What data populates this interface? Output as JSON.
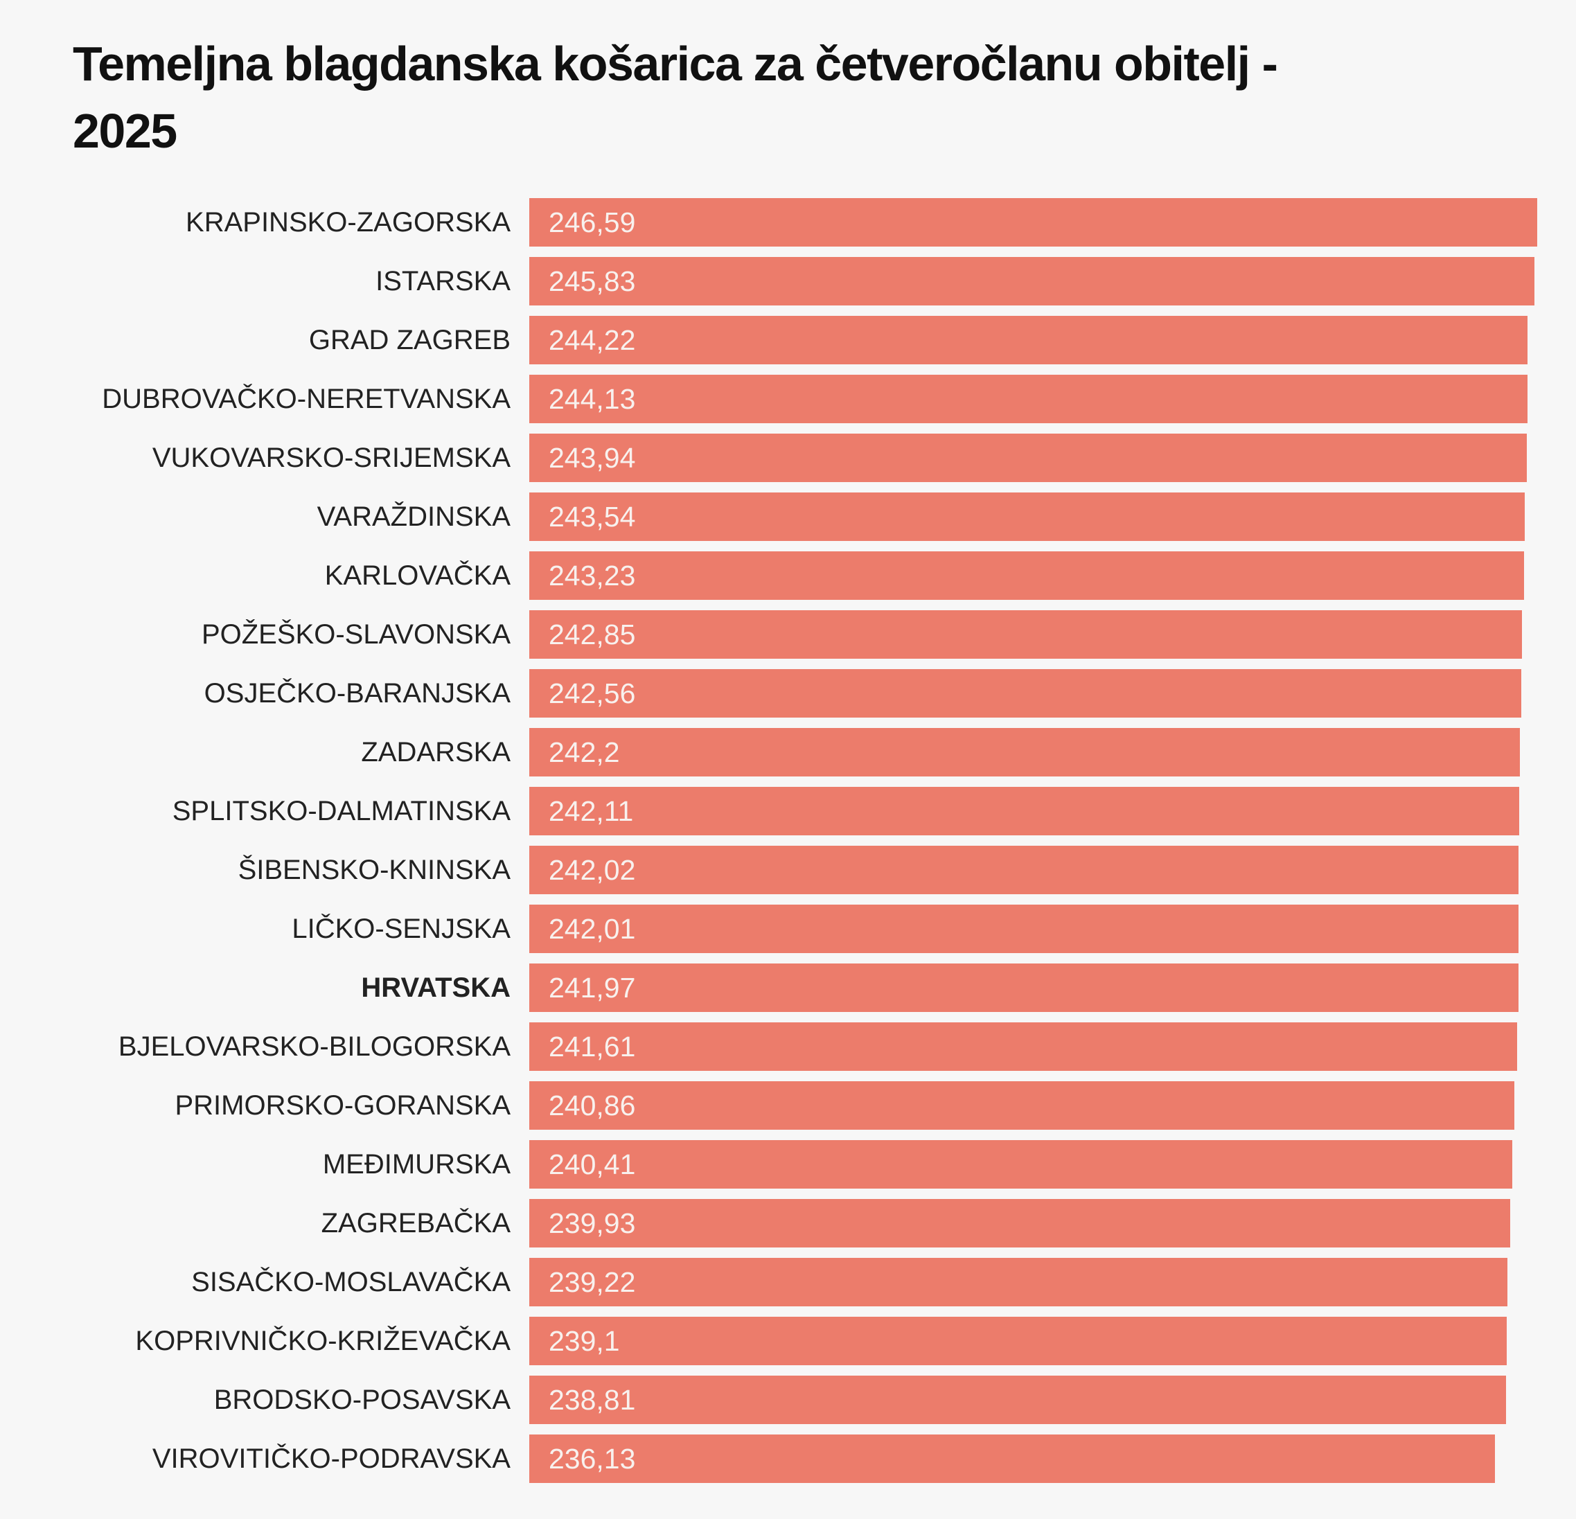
{
  "title": {
    "line1": "Temeljna blagdanska košarica za četveročlanu obitelj -",
    "line2": "2025"
  },
  "colors": {
    "background": "#f7f7f7",
    "bar": "#ec7c6b",
    "title_text": "#111111",
    "label_text": "#222222",
    "value_text": "#f8f1ee"
  },
  "chart_data": {
    "type": "bar",
    "orientation": "horizontal",
    "title": "Temeljna blagdanska košarica za četveročlanu obitelj - 2025",
    "legend_position": "none",
    "grid": false,
    "value_axis": {
      "min": 0,
      "scale_max": 256
    },
    "emphasized_category": "HRVATSKA",
    "categories": [
      "KRAPINSKO-ZAGORSKA",
      "ISTARSKA",
      "GRAD ZAGREB",
      "DUBROVAČKO-NERETVANSKA",
      "VUKOVARSKO-SRIJEMSKA",
      "VARAŽDINSKA",
      "KARLOVAČKA",
      "POŽEŠKO-SLAVONSKA",
      "OSJEČKO-BARANJSKA",
      "ZADARSKA",
      "SPLITSKO-DALMATINSKA",
      "ŠIBENSKO-KNINSKA",
      "LIČKO-SENJSKA",
      "HRVATSKA",
      "BJELOVARSKO-BILOGORSKA",
      "PRIMORSKO-GORANSKA",
      "MEĐIMURSKA",
      "ZAGREBAČKA",
      "SISAČKO-MOSLAVAČKA",
      "KOPRIVNIČKO-KRIŽEVAČKA",
      "BRODSKO-POSAVSKA",
      "VIROVITIČKO-PODRAVSKA"
    ],
    "values": [
      246.59,
      245.83,
      244.22,
      244.13,
      243.94,
      243.54,
      243.23,
      242.85,
      242.56,
      242.2,
      242.11,
      242.02,
      242.01,
      241.97,
      241.61,
      240.86,
      240.41,
      239.93,
      239.22,
      239.1,
      238.81,
      236.13
    ],
    "value_labels": [
      "246,59",
      "245,83",
      "244,22",
      "244,13",
      "243,94",
      "243,54",
      "243,23",
      "242,85",
      "242,56",
      "242,2",
      "242,11",
      "242,02",
      "242,01",
      "241,97",
      "241,61",
      "240,86",
      "240,41",
      "239,93",
      "239,22",
      "239,1",
      "238,81",
      "236,13"
    ]
  }
}
